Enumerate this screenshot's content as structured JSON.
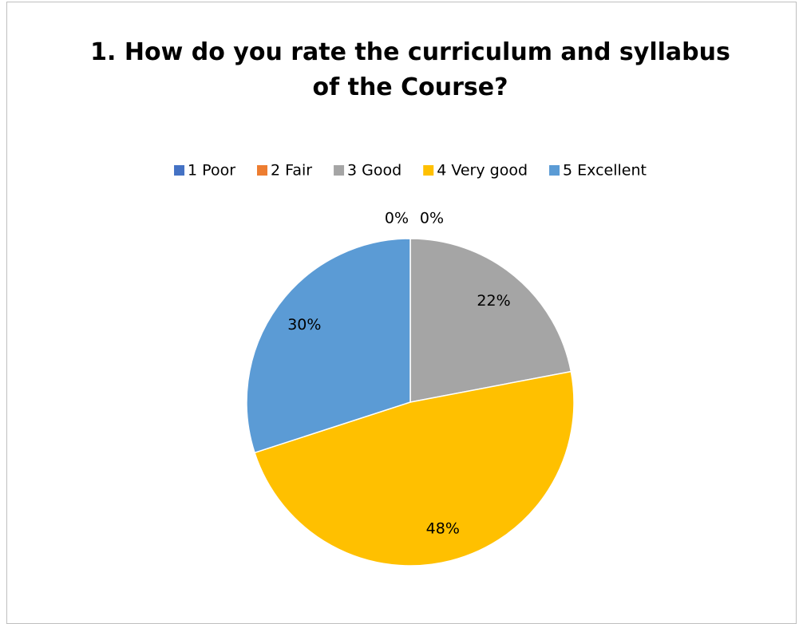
{
  "chart_data": {
    "type": "pie",
    "title": "1. How do you rate the curriculum and syllabus of the Course?",
    "categories": [
      "1 Poor",
      "2 Fair",
      "3 Good",
      "4 Very good",
      "5 Excellent"
    ],
    "values": [
      0,
      0,
      22,
      48,
      30
    ],
    "value_labels": [
      "0%",
      "0%",
      "22%",
      "48%",
      "30%"
    ],
    "colors": [
      "#4472c4",
      "#ed7d31",
      "#a5a5a5",
      "#ffc000",
      "#5b9bd5"
    ],
    "legend": "top"
  }
}
